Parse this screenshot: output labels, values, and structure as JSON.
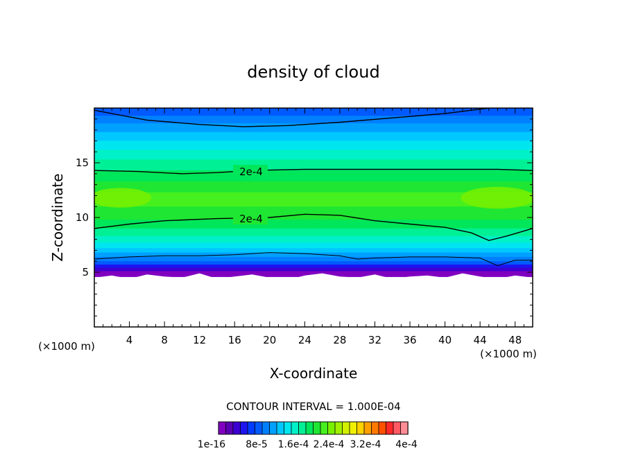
{
  "chart_data": {
    "type": "heatmap",
    "title": "density of cloud",
    "xlabel": "X-coordinate",
    "ylabel": "Z-coordinate",
    "x_unit_left": "(×1000 m)",
    "x_unit_right": "(×1000 m)",
    "xlim": [
      0,
      50
    ],
    "ylim": [
      0,
      20
    ],
    "x_ticks": [
      4,
      8,
      12,
      16,
      20,
      24,
      28,
      32,
      36,
      40,
      44,
      48
    ],
    "y_ticks": [
      5,
      10,
      15
    ],
    "contour_interval_text": "CONTOUR INTERVAL = 1.000E-04",
    "contour_labels": [
      "2e-4",
      "2e-4"
    ],
    "colorbar": {
      "colors": [
        "#8000c0",
        "#5a00b4",
        "#3c00d2",
        "#1e14f0",
        "#003cff",
        "#005aff",
        "#0080ff",
        "#00a0ff",
        "#00c8ff",
        "#00e6f0",
        "#00f0c8",
        "#00f096",
        "#00e65a",
        "#1ee632",
        "#46f01e",
        "#78f000",
        "#a0f000",
        "#d2f000",
        "#f0f000",
        "#ffd200",
        "#ffa000",
        "#ff7800",
        "#ff5000",
        "#ff2828",
        "#ff5a64",
        "#ff8c96"
      ],
      "labels": [
        "1e-16",
        "8e-5",
        "1.6e-4",
        "2.4e-4",
        "3.2e-4",
        "4e-4"
      ]
    },
    "bands": [
      {
        "z_top": 20.0,
        "z_bottom": 19.3,
        "color": "#005aff"
      },
      {
        "z_top": 19.3,
        "z_bottom": 18.6,
        "color": "#0080ff"
      },
      {
        "z_top": 18.6,
        "z_bottom": 17.8,
        "color": "#00a0ff"
      },
      {
        "z_top": 17.8,
        "z_bottom": 17.0,
        "color": "#00c8ff"
      },
      {
        "z_top": 17.0,
        "z_bottom": 16.2,
        "color": "#00e6f0"
      },
      {
        "z_top": 16.2,
        "z_bottom": 15.3,
        "color": "#00f0c8"
      },
      {
        "z_top": 15.3,
        "z_bottom": 14.3,
        "color": "#00f096"
      },
      {
        "z_top": 14.3,
        "z_bottom": 13.3,
        "color": "#00e65a"
      },
      {
        "z_top": 13.3,
        "z_bottom": 12.3,
        "color": "#1ee632"
      },
      {
        "z_top": 12.3,
        "z_bottom": 11.0,
        "color": "#46f01e"
      },
      {
        "z_top": 11.0,
        "z_bottom": 9.8,
        "color": "#1ee632"
      },
      {
        "z_top": 9.8,
        "z_bottom": 9.0,
        "color": "#00e65a"
      },
      {
        "z_top": 9.0,
        "z_bottom": 8.3,
        "color": "#00f096"
      },
      {
        "z_top": 8.3,
        "z_bottom": 7.7,
        "color": "#00f0c8"
      },
      {
        "z_top": 7.7,
        "z_bottom": 7.2,
        "color": "#00e6f0"
      },
      {
        "z_top": 7.2,
        "z_bottom": 6.8,
        "color": "#00c8ff"
      },
      {
        "z_top": 6.8,
        "z_bottom": 6.4,
        "color": "#00a0ff"
      },
      {
        "z_top": 6.4,
        "z_bottom": 6.0,
        "color": "#0080ff"
      },
      {
        "z_top": 6.0,
        "z_bottom": 5.7,
        "color": "#005aff"
      },
      {
        "z_top": 5.7,
        "z_bottom": 5.4,
        "color": "#1e14f0"
      },
      {
        "z_top": 5.4,
        "z_bottom": 5.1,
        "color": "#3c00d2"
      },
      {
        "z_top": 5.1,
        "z_bottom": 4.6,
        "color": "#8000c0"
      }
    ],
    "highlights": [
      {
        "x": 3,
        "z": 11.8,
        "rx": 3.5,
        "rz": 0.9,
        "color": "#78f000"
      },
      {
        "x": 46,
        "z": 11.8,
        "rx": 4.2,
        "rz": 1.0,
        "color": "#78f000"
      }
    ],
    "contour_lines": [
      {
        "points": [
          [
            0,
            19.8
          ],
          [
            6,
            18.9
          ],
          [
            12,
            18.5
          ],
          [
            17,
            18.3
          ],
          [
            22,
            18.4
          ],
          [
            28,
            18.7
          ],
          [
            34,
            19.1
          ],
          [
            40,
            19.5
          ],
          [
            44,
            19.9
          ],
          [
            45,
            20.0
          ]
        ]
      },
      {
        "points": [
          [
            0,
            14.3
          ],
          [
            5,
            14.2
          ],
          [
            10,
            14.0
          ],
          [
            14,
            14.1
          ],
          [
            18,
            14.3
          ],
          [
            24,
            14.4
          ],
          [
            32,
            14.4
          ],
          [
            40,
            14.4
          ],
          [
            46,
            14.4
          ],
          [
            50,
            14.3
          ]
        ]
      },
      {
        "points": [
          [
            0,
            9.0
          ],
          [
            4,
            9.4
          ],
          [
            8,
            9.7
          ],
          [
            14,
            9.9
          ],
          [
            20,
            10.0
          ],
          [
            24,
            10.3
          ],
          [
            28,
            10.2
          ],
          [
            32,
            9.7
          ],
          [
            36,
            9.4
          ],
          [
            40,
            9.1
          ],
          [
            43,
            8.6
          ],
          [
            45,
            7.9
          ],
          [
            47,
            8.3
          ],
          [
            50,
            9.0
          ]
        ]
      }
    ],
    "cloud_base_outline": {
      "points": [
        [
          0,
          6.2
        ],
        [
          4,
          6.4
        ],
        [
          8,
          6.5
        ],
        [
          12,
          6.5
        ],
        [
          16,
          6.6
        ],
        [
          20,
          6.8
        ],
        [
          24,
          6.7
        ],
        [
          28,
          6.5
        ],
        [
          30,
          6.2
        ],
        [
          32,
          6.3
        ],
        [
          36,
          6.4
        ],
        [
          40,
          6.4
        ],
        [
          44,
          6.3
        ],
        [
          46,
          5.6
        ],
        [
          48,
          6.1
        ],
        [
          50,
          6.1
        ]
      ]
    },
    "cloud_bottom_z": [
      4.5,
      4.7,
      4.4,
      4.8,
      4.6,
      4.5,
      4.9,
      4.4,
      4.6,
      4.8,
      4.5,
      4.3,
      4.7,
      4.9,
      4.6,
      4.5,
      4.8,
      4.4,
      4.6,
      4.7,
      4.5,
      4.9,
      4.6,
      4.4,
      4.7,
      4.5
    ]
  }
}
